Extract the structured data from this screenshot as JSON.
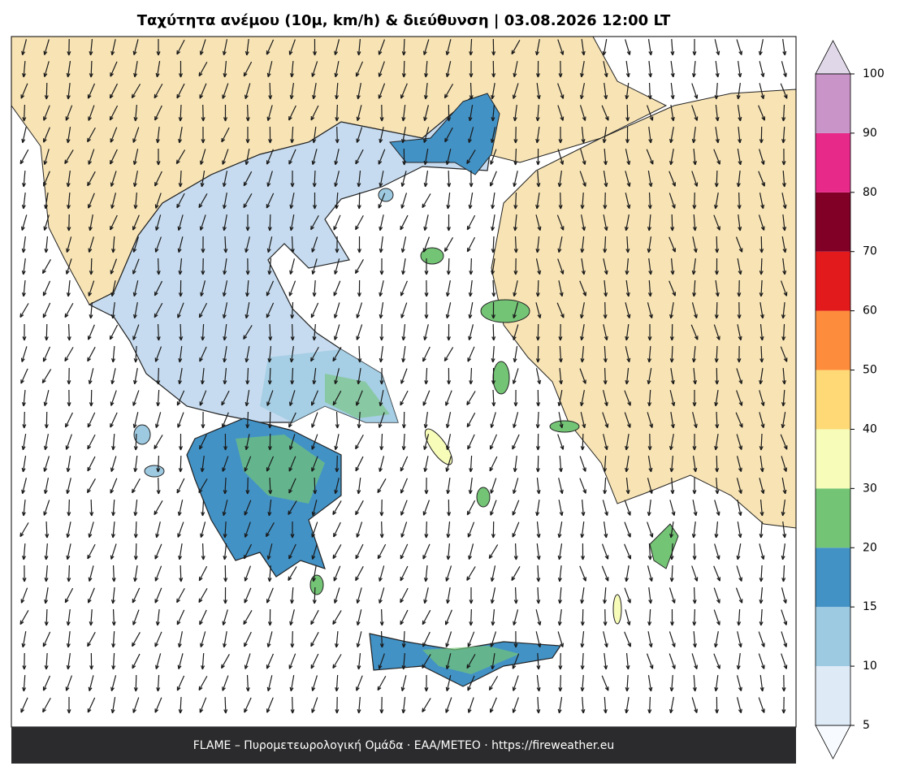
{
  "title": "Ταχύτητα ανέμου (10μ, km/h) & διεύθυνση  |  03.08.2026 12:00 LT",
  "footer": "FLAME – Πυρομετεωρολογική Ομάδα · ΕΑΑ/METEO · https://fireweather.eu",
  "colorbar": {
    "ticks": [
      5,
      10,
      15,
      20,
      30,
      40,
      50,
      60,
      70,
      80,
      90,
      100
    ],
    "colors": [
      "#deebf7",
      "#9ecae1",
      "#4292c6",
      "#74c476",
      "#f7fcb9",
      "#fed976",
      "#fd8d3c",
      "#e31a1c",
      "#800026",
      "#e7298a",
      "#c994c7"
    ],
    "under_color": "#f7fbff",
    "over_color": "#e0d8e8"
  }
}
